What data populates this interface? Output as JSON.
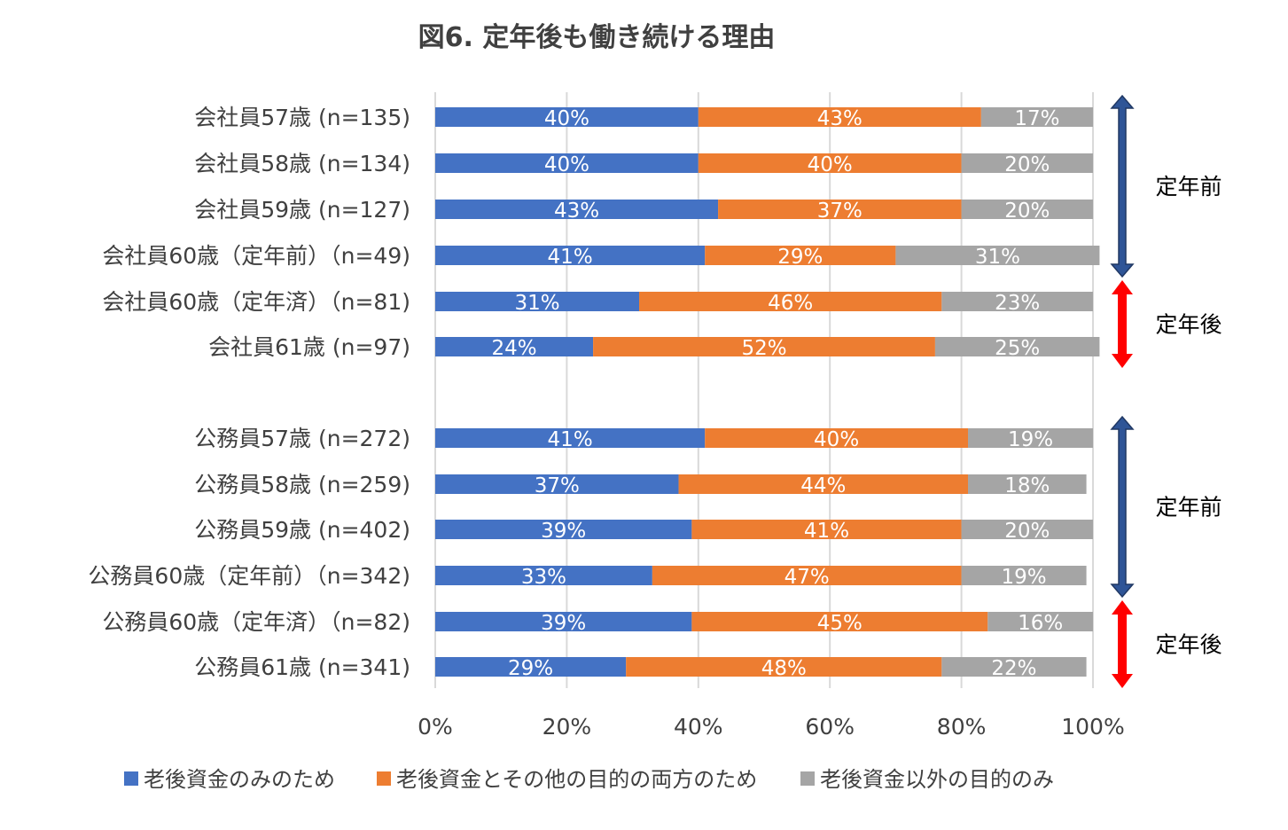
{
  "chart_data": {
    "type": "bar",
    "orientation": "horizontal",
    "stacked": "percent",
    "title": "図6. 定年後も働き続ける理由",
    "categories": [
      "会社員57歳 (n=135)",
      "会社員58歳 (n=134)",
      "会社員59歳 (n=127)",
      "会社員60歳（定年前）（n=49)",
      "会社員60歳（定年済）（n=81)",
      "会社員61歳 (n=97)",
      "公務員57歳 (n=272)",
      "公務員58歳 (n=259)",
      "公務員59歳 (n=402)",
      "公務員60歳（定年前）（n=342)",
      "公務員60歳（定年済）（n=82)",
      "公務員61歳 (n=341)"
    ],
    "series": [
      {
        "name": "老後資金のみのため",
        "color": "#4472C4",
        "values": [
          40,
          40,
          43,
          41,
          31,
          24,
          41,
          37,
          39,
          33,
          39,
          29
        ],
        "labels": [
          "40%",
          "40%",
          "43%",
          "41%",
          "31%",
          "24%",
          "41%",
          "37%",
          "39%",
          "33%",
          "39%",
          "29%"
        ]
      },
      {
        "name": "老後資金とその他の目的の両方のため",
        "color": "#ED7D31",
        "values": [
          43,
          40,
          37,
          29,
          46,
          52,
          40,
          44,
          41,
          47,
          45,
          48
        ],
        "labels": [
          "43%",
          "40%",
          "37%",
          "29%",
          "46%",
          "52%",
          "40%",
          "44%",
          "41%",
          "47%",
          "45%",
          "48%"
        ]
      },
      {
        "name": "老後資金以外の目的のみ",
        "color": "#A5A5A5",
        "values": [
          17,
          20,
          20,
          31,
          23,
          25,
          19,
          18,
          20,
          19,
          16,
          22
        ],
        "labels": [
          "17%",
          "20%",
          "20%",
          "31%",
          "23%",
          "25%",
          "19%",
          "18%",
          "20%",
          "19%",
          "16%",
          "22%"
        ]
      }
    ],
    "xlim": [
      0,
      100
    ],
    "xticks": [
      "0%",
      "20%",
      "40%",
      "60%",
      "80%",
      "100%"
    ],
    "grid": true,
    "legend_position": "bottom",
    "annotations": [
      {
        "text": "定年前",
        "color": "#2F5597",
        "arrow": "double",
        "rows": [
          0,
          3
        ]
      },
      {
        "text": "定年後",
        "color": "#FF0000",
        "arrow": "double",
        "rows": [
          4,
          5
        ]
      },
      {
        "text": "定年前",
        "color": "#2F5597",
        "arrow": "double",
        "rows": [
          6,
          9
        ]
      },
      {
        "text": "定年後",
        "color": "#FF0000",
        "arrow": "double",
        "rows": [
          10,
          11
        ]
      }
    ]
  }
}
